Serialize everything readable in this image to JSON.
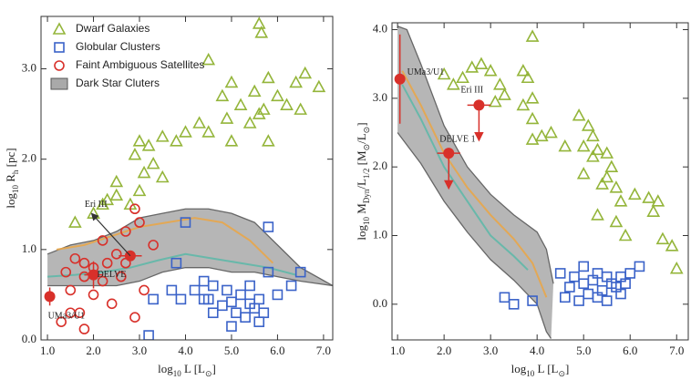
{
  "chart_data": [
    {
      "type": "scatter",
      "legend": "upper left",
      "x_label": [
        {
          "text": "log"
        },
        {
          "text": "10",
          "sub": true
        },
        {
          "text": " L [L"
        },
        {
          "text": "⊙",
          "sub": true
        },
        {
          "text": "]"
        }
      ],
      "y_label": [
        {
          "text": "log"
        },
        {
          "text": "10",
          "sub": true
        },
        {
          "text": " R"
        },
        {
          "text": "h",
          "sub": true
        },
        {
          "text": " [pc]"
        }
      ],
      "xlim": [
        0.86,
        7.2
      ],
      "ylim": [
        0,
        3.58
      ],
      "xticks": [
        {
          "value": 1,
          "label": "1.0"
        },
        {
          "value": 2,
          "label": "2.0"
        },
        {
          "value": 3,
          "label": "3.0"
        },
        {
          "value": 4,
          "label": "4.0"
        },
        {
          "value": 5,
          "label": "5.0"
        },
        {
          "value": 6,
          "label": "6.0"
        },
        {
          "value": 7,
          "label": "7.0"
        }
      ],
      "yticks": [
        {
          "value": 0,
          "label": "0.0"
        },
        {
          "value": 1,
          "label": "1.0"
        },
        {
          "value": 2,
          "label": "2.0"
        },
        {
          "value": 3,
          "label": "3.0"
        }
      ],
      "band": {
        "name": "Dark Star Cluters",
        "color": "#a9a9a9",
        "upper": {
          "x": [
            1.0,
            1.5,
            2.0,
            2.5,
            3.0,
            3.5,
            4.0,
            4.5,
            5.0,
            5.5,
            6.0,
            6.5,
            7.2
          ],
          "y": [
            0.95,
            1.05,
            1.1,
            1.2,
            1.35,
            1.4,
            1.45,
            1.45,
            1.4,
            1.3,
            1.05,
            0.8,
            0.6
          ]
        },
        "lower": {
          "x": [
            1.0,
            1.5,
            2.0,
            2.5,
            3.0,
            3.5,
            4.0,
            4.5,
            5.0,
            5.5,
            6.0,
            6.5,
            7.2
          ],
          "y": [
            0.6,
            0.6,
            0.6,
            0.6,
            0.65,
            0.75,
            0.8,
            0.8,
            0.75,
            0.75,
            0.7,
            0.65,
            0.6
          ]
        }
      },
      "tracks": [
        {
          "color": "#e8a64a",
          "x": [
            1.2,
            1.8,
            2.4,
            3.0,
            3.6,
            4.2,
            4.8,
            5.4,
            5.9
          ],
          "y": [
            1.0,
            1.05,
            1.15,
            1.25,
            1.3,
            1.35,
            1.3,
            1.1,
            0.85
          ]
        },
        {
          "color": "#5fb8a8",
          "x": [
            1.0,
            1.6,
            2.2,
            2.8,
            3.4,
            4.0,
            4.6,
            5.2,
            5.8,
            6.4
          ],
          "y": [
            0.7,
            0.72,
            0.75,
            0.8,
            0.88,
            0.95,
            0.9,
            0.85,
            0.8,
            0.72
          ]
        }
      ],
      "series": [
        {
          "name": "Dwarf Galaxies",
          "marker": "triangle",
          "color": "#94b53a",
          "x": [
            5.6,
            5.65,
            4.5,
            6.6,
            6.4,
            6.9,
            5.0,
            5.8,
            5.5,
            4.8,
            5.2,
            6.0,
            5.7,
            5.6,
            4.3,
            4.9,
            5.4,
            6.2,
            4.0,
            3.8,
            3.5,
            3.2,
            3.0,
            4.5,
            2.9,
            3.3,
            3.1,
            2.5,
            2.3,
            2.5,
            2.8,
            2.2,
            2.0,
            1.6,
            6.5,
            5.8,
            5.0,
            3.5,
            3.0
          ],
          "values": [
            3.5,
            3.4,
            3.1,
            2.95,
            2.85,
            2.8,
            2.85,
            2.9,
            2.75,
            2.7,
            2.6,
            2.7,
            2.55,
            2.5,
            2.4,
            2.45,
            2.4,
            2.6,
            2.3,
            2.2,
            2.25,
            2.15,
            2.2,
            2.3,
            2.05,
            1.95,
            1.85,
            1.75,
            1.55,
            1.6,
            1.5,
            1.5,
            1.4,
            1.3,
            2.55,
            2.2,
            2.2,
            1.8,
            1.65
          ]
        },
        {
          "name": "Globular Clusters",
          "marker": "square",
          "color": "#3a62c8",
          "x": [
            5.8,
            4.0,
            3.3,
            4.2,
            4.5,
            4.6,
            4.8,
            5.0,
            5.2,
            5.4,
            5.5,
            5.3,
            5.6,
            5.7,
            6.0,
            5.1,
            4.9,
            5.6,
            4.6,
            3.9,
            6.3,
            6.5,
            5.8,
            5.4,
            3.7,
            3.2,
            5.0,
            4.4,
            3.8,
            4.4
          ],
          "values": [
            1.25,
            1.3,
            0.45,
            0.55,
            0.45,
            0.3,
            0.38,
            0.42,
            0.5,
            0.4,
            0.35,
            0.25,
            0.45,
            0.3,
            0.5,
            0.3,
            0.55,
            0.2,
            0.6,
            0.45,
            0.6,
            0.75,
            0.75,
            0.6,
            0.55,
            0.05,
            0.15,
            0.45,
            0.85,
            0.65
          ]
        },
        {
          "name": "Faint Ambiguous Satellites",
          "marker": "circle",
          "color": "#d8302a",
          "x": [
            2.9,
            3.0,
            2.7,
            2.2,
            3.3,
            1.8,
            2.5,
            1.6,
            2.0,
            1.4,
            1.8,
            2.2,
            2.6,
            3.1,
            1.5,
            2.0,
            2.4,
            1.7,
            1.5,
            1.3,
            1.8,
            2.9,
            2.3,
            2.7
          ],
          "values": [
            1.45,
            1.3,
            1.2,
            1.1,
            1.05,
            0.85,
            0.95,
            0.9,
            0.8,
            0.75,
            0.7,
            0.65,
            0.7,
            0.55,
            0.55,
            0.5,
            0.4,
            0.3,
            0.3,
            0.2,
            0.12,
            0.25,
            0.85,
            0.85
          ]
        }
      ],
      "highlights": [
        {
          "label": "UMa3/U1",
          "x": 1.05,
          "y": 0.48,
          "yerr": 0.1
        },
        {
          "label": "DELVE",
          "x": 2.0,
          "y": 0.72,
          "xerr": 0.2,
          "yerr": 0.15
        },
        {
          "label": "Eri III",
          "x": 2.8,
          "y": 0.93,
          "xerr": 0.25
        }
      ]
    },
    {
      "type": "scatter",
      "x_label": [
        {
          "text": "log"
        },
        {
          "text": "10",
          "sub": true
        },
        {
          "text": " L [L"
        },
        {
          "text": "⊙",
          "sub": true
        },
        {
          "text": "]"
        }
      ],
      "y_label": [
        {
          "text": "log"
        },
        {
          "text": "10",
          "sub": true
        },
        {
          "text": " M"
        },
        {
          "text": "Dyn",
          "sub": true
        },
        {
          "text": "/L"
        },
        {
          "text": "1/2",
          "sub": true
        },
        {
          "text": " [M"
        },
        {
          "text": "⊙",
          "sub": true
        },
        {
          "text": "/L"
        },
        {
          "text": "⊙",
          "sub": true
        },
        {
          "text": "]"
        }
      ],
      "xlim": [
        0.88,
        7.25
      ],
      "ylim": [
        -0.52,
        4.1
      ],
      "xticks": [
        {
          "value": 1,
          "label": "1.0"
        },
        {
          "value": 2,
          "label": "2.0"
        },
        {
          "value": 3,
          "label": "3.0"
        },
        {
          "value": 4,
          "label": "4.0"
        },
        {
          "value": 5,
          "label": "5.0"
        },
        {
          "value": 6,
          "label": "6.0"
        },
        {
          "value": 7,
          "label": "7.0"
        }
      ],
      "yticks": [
        {
          "value": 0,
          "label": "0.0"
        },
        {
          "value": 1,
          "label": "1.0"
        },
        {
          "value": 2,
          "label": "2.0"
        },
        {
          "value": 3,
          "label": "3.0"
        },
        {
          "value": 4,
          "label": "4.0"
        }
      ],
      "band": {
        "color": "#a9a9a9",
        "upper": {
          "x": [
            1.0,
            1.2,
            1.5,
            2.0,
            2.5,
            3.0,
            3.5,
            4.0,
            4.2,
            4.35
          ],
          "y": [
            4.05,
            4.0,
            3.5,
            2.6,
            2.0,
            1.6,
            1.3,
            1.05,
            0.8,
            0.3
          ]
        },
        "lower": {
          "x": [
            1.0,
            1.5,
            2.0,
            2.5,
            3.0,
            3.5,
            4.0,
            4.2,
            4.3
          ],
          "y": [
            2.5,
            2.05,
            1.5,
            1.05,
            0.65,
            0.35,
            0.0,
            -0.4,
            -0.5
          ]
        }
      },
      "tracks": [
        {
          "color": "#e8a64a",
          "x": [
            1.1,
            1.5,
            2.0,
            2.5,
            3.0,
            3.5,
            3.9,
            4.2
          ],
          "y": [
            3.4,
            2.9,
            2.2,
            1.7,
            1.3,
            0.95,
            0.6,
            0.1
          ]
        },
        {
          "color": "#5fb8a8",
          "x": [
            1.1,
            1.5,
            2.0,
            2.5,
            3.0,
            3.5,
            3.8
          ],
          "y": [
            3.2,
            2.7,
            2.0,
            1.5,
            1.0,
            0.7,
            0.5
          ]
        }
      ],
      "series": [
        {
          "marker": "triangle",
          "color": "#94b53a",
          "x": [
            3.9,
            2.8,
            2.6,
            3.0,
            2.4,
            2.2,
            2.0,
            3.2,
            3.7,
            3.8,
            3.9,
            3.7,
            3.9,
            3.3,
            3.1,
            4.3,
            4.6,
            4.9,
            5.1,
            5.2,
            5.0,
            4.1,
            3.9,
            5.3,
            5.5,
            5.6,
            5.5,
            5.7,
            5.4,
            5.8,
            5.0,
            5.3,
            6.1,
            6.4,
            6.6,
            5.7,
            5.9,
            6.7,
            6.9,
            7.0,
            6.5,
            5.2
          ],
          "values": [
            3.9,
            3.5,
            3.45,
            3.4,
            3.3,
            3.2,
            3.35,
            3.2,
            3.4,
            3.3,
            3.0,
            2.9,
            2.7,
            3.05,
            2.95,
            2.5,
            2.3,
            2.75,
            2.6,
            2.45,
            2.3,
            2.45,
            2.4,
            2.25,
            2.2,
            2.0,
            1.85,
            1.7,
            1.75,
            1.5,
            1.9,
            1.3,
            1.6,
            1.55,
            1.5,
            1.2,
            1.0,
            0.95,
            0.85,
            0.52,
            1.35,
            2.15
          ]
        },
        {
          "marker": "square",
          "color": "#3a62c8",
          "x": [
            4.5,
            4.7,
            4.8,
            5.0,
            5.1,
            5.2,
            5.3,
            5.4,
            5.5,
            5.6,
            5.7,
            5.8,
            5.9,
            6.0,
            6.2,
            5.0,
            5.3,
            4.9,
            3.5,
            3.3,
            3.9,
            5.8,
            4.6,
            5.5
          ],
          "values": [
            0.45,
            0.25,
            0.4,
            0.3,
            0.15,
            0.35,
            0.45,
            0.2,
            0.4,
            0.3,
            0.25,
            0.4,
            0.3,
            0.45,
            0.55,
            0.55,
            0.1,
            0.05,
            0.0,
            0.1,
            0.05,
            0.15,
            0.1,
            0.05
          ]
        }
      ],
      "highlights": [
        {
          "label": "UMa3/U1",
          "x": 1.05,
          "y": 3.28,
          "yerr": 0.65
        },
        {
          "label": "Eri III",
          "x": 2.75,
          "y": 2.9,
          "xerr": 0.25,
          "upper_limit": true
        },
        {
          "label": "DELVE 1",
          "x": 2.1,
          "y": 2.2,
          "xerr": 0.25,
          "upper_limit": true
        }
      ]
    }
  ]
}
